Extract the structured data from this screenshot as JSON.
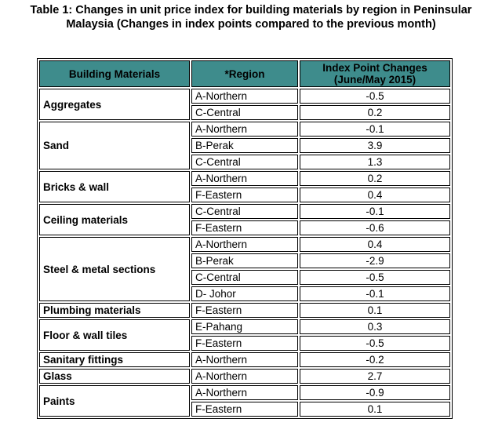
{
  "title": {
    "lines": [
      "Table 1: Changes in unit price index for building materials by region in Peninsular",
      "Malaysia (Changes in index points compared to the previous month)"
    ]
  },
  "table": {
    "headers": [
      [
        "Building Materials"
      ],
      [
        "*Region"
      ],
      [
        "Index Point Changes",
        "(June/May 2015)"
      ]
    ],
    "groups": [
      {
        "material": "Aggregates",
        "rows": [
          {
            "region": "A-Northern",
            "change": -0.5
          },
          {
            "region": "C-Central",
            "change": 0.2
          }
        ]
      },
      {
        "material": "Sand",
        "rows": [
          {
            "region": "A-Northern",
            "change": -0.1
          },
          {
            "region": "B-Perak",
            "change": 3.9
          },
          {
            "region": "C-Central",
            "change": 1.3
          }
        ]
      },
      {
        "material": "Bricks & wall",
        "rows": [
          {
            "region": "A-Northern",
            "change": 0.2
          },
          {
            "region": "F-Eastern",
            "change": 0.4
          }
        ]
      },
      {
        "material": "Ceiling materials",
        "rows": [
          {
            "region": "C-Central",
            "change": -0.1
          },
          {
            "region": "F-Eastern",
            "change": -0.6
          }
        ]
      },
      {
        "material": "Steel & metal sections",
        "rows": [
          {
            "region": "A-Northern",
            "change": 0.4
          },
          {
            "region": "B-Perak",
            "change": -2.9
          },
          {
            "region": "C-Central",
            "change": -0.5
          },
          {
            "region": "D- Johor",
            "change": -0.1
          }
        ]
      },
      {
        "material": "Plumbing materials",
        "rows": [
          {
            "region": "F-Eastern",
            "change": 0.1
          }
        ]
      },
      {
        "material": "Floor & wall tiles",
        "rows": [
          {
            "region": "E-Pahang",
            "change": 0.3
          },
          {
            "region": "F-Eastern",
            "change": -0.5
          }
        ]
      },
      {
        "material": "Sanitary fittings",
        "rows": [
          {
            "region": "A-Northern",
            "change": -0.2
          }
        ]
      },
      {
        "material": "Glass",
        "rows": [
          {
            "region": "A-Northern",
            "change": 2.7
          }
        ]
      },
      {
        "material": "Paints",
        "rows": [
          {
            "region": "A-Northern",
            "change": -0.9
          },
          {
            "region": "F-Eastern",
            "change": 0.1
          }
        ]
      }
    ]
  }
}
